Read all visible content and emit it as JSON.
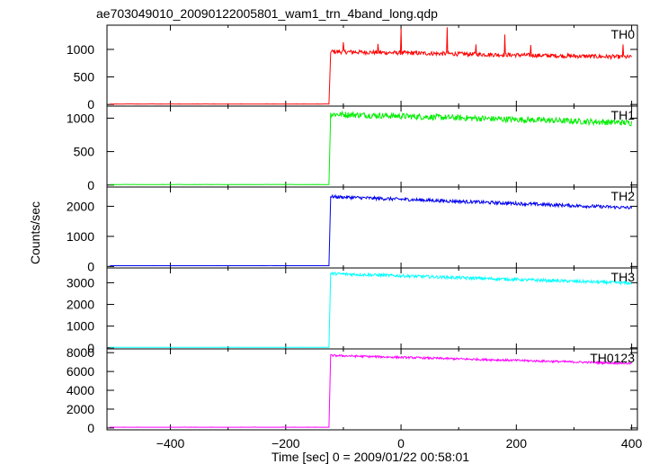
{
  "title": "ae703049010_20090122005801_wam1_trn_4band_long.qdp",
  "ylabel": "Counts/sec",
  "xlabel": "Time [sec] 0 = 2009/01/22 00:58:01",
  "chart_data": [
    {
      "type": "line",
      "series": [
        {
          "name": "TH0",
          "color": "#ff0000"
        }
      ],
      "xlim": [
        -510,
        410
      ],
      "ylim": [
        -30,
        1440
      ],
      "yticks": [
        0,
        500,
        1000
      ],
      "ytick_labels": [
        "0",
        "500",
        "1000"
      ],
      "pre_level": 8,
      "post_start": 960,
      "post_end": 860,
      "noise": 38,
      "spikes": [
        [
          0,
          1380
        ],
        [
          80,
          1400
        ],
        [
          -100,
          1130
        ],
        [
          -40,
          1100
        ],
        [
          130,
          1090
        ],
        [
          180,
          1270
        ],
        [
          225,
          1080
        ],
        [
          385,
          1090
        ]
      ]
    },
    {
      "type": "line",
      "series": [
        {
          "name": "TH1",
          "color": "#00ee00"
        }
      ],
      "xlim": [
        -510,
        410
      ],
      "ylim": [
        -30,
        1180
      ],
      "yticks": [
        0,
        500,
        1000
      ],
      "ytick_labels": [
        "0",
        "500",
        "1000"
      ],
      "pre_level": 8,
      "post_start": 1060,
      "post_end": 930,
      "noise": 45,
      "spikes": []
    },
    {
      "type": "line",
      "series": [
        {
          "name": "TH2",
          "color": "#0000ee"
        }
      ],
      "xlim": [
        -510,
        410
      ],
      "ylim": [
        -50,
        2640
      ],
      "yticks": [
        0,
        1000,
        2000
      ],
      "ytick_labels": [
        "0",
        "1000",
        "2000"
      ],
      "pre_level": 25,
      "post_start": 2320,
      "post_end": 1950,
      "noise": 55,
      "spikes": []
    },
    {
      "type": "line",
      "series": [
        {
          "name": "TH3",
          "color": "#00ffff"
        }
      ],
      "xlim": [
        -510,
        410
      ],
      "ylim": [
        -50,
        3680
      ],
      "yticks": [
        0,
        1000,
        2000,
        3000
      ],
      "ytick_labels": [
        "0",
        "1000",
        "2000",
        "3000"
      ],
      "pre_level": 25,
      "post_start": 3420,
      "post_end": 2980,
      "noise": 70,
      "spikes": []
    },
    {
      "type": "line",
      "series": [
        {
          "name": "TH0123",
          "color": "#ff00ff"
        }
      ],
      "xlim": [
        -510,
        410
      ],
      "ylim": [
        -200,
        8400
      ],
      "yticks": [
        0,
        2000,
        4000,
        6000,
        8000
      ],
      "ytick_labels": [
        "0",
        "2000",
        "4000",
        "6000",
        "8000"
      ],
      "xticks": [
        -400,
        -200,
        0,
        200,
        400
      ],
      "xtick_labels": [
        "−400",
        "−200",
        "0",
        "200",
        "400"
      ],
      "pre_level": 80,
      "post_start": 7700,
      "post_end": 6850,
      "noise": 110,
      "spikes": []
    }
  ],
  "rise_time": -122
}
